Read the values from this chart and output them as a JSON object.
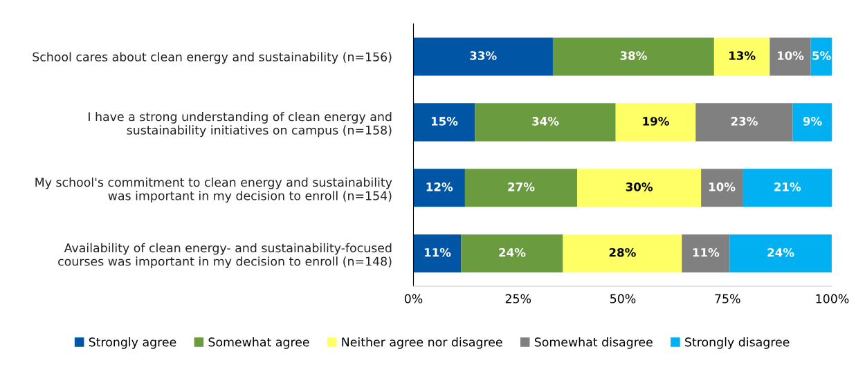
{
  "chart_data": {
    "type": "bar",
    "orientation": "horizontal",
    "stacked": true,
    "categories": [
      "School cares about clean energy and sustainability (n=156)",
      "I have a strong understanding of clean energy and\nsustainability initiatives on campus (n=158)",
      "My school's commitment to clean energy and sustainability\nwas important in my decision to enroll (n=154)",
      "Availability of clean energy- and sustainability-focused\ncourses was important in my decision to enroll (n=148)"
    ],
    "series": [
      {
        "name": "Strongly agree",
        "color": "#0055a5",
        "values": [
          33.3,
          14.7,
          12.3,
          11.4
        ],
        "value_labels": [
          "33%",
          "15%",
          "12%",
          "11%"
        ]
      },
      {
        "name": "Somewhat agree",
        "color": "#6a9c3f",
        "values": [
          38.5,
          33.6,
          26.8,
          24.3
        ],
        "value_labels": [
          "38%",
          "34%",
          "27%",
          "24%"
        ]
      },
      {
        "name": "Neither agree nor disagree",
        "color": "#ffff66",
        "values": [
          13.3,
          19.1,
          29.6,
          28.4
        ],
        "value_labels": [
          "13%",
          "19%",
          "30%",
          "28%"
        ]
      },
      {
        "name": "Somewhat disagree",
        "color": "#808080",
        "values": [
          9.8,
          23.2,
          9.9,
          11.4
        ],
        "value_labels": [
          "10%",
          "23%",
          "10%",
          "11%"
        ]
      },
      {
        "name": "Strongly disagree",
        "color": "#00b0f0",
        "values": [
          5.1,
          9.4,
          21.4,
          24.4
        ],
        "value_labels": [
          "5%",
          "9%",
          "21%",
          "24%"
        ]
      }
    ],
    "xlim": [
      0,
      100
    ],
    "xticks": [
      {
        "value": 0,
        "label": "0%"
      },
      {
        "value": 25,
        "label": "25%"
      },
      {
        "value": 50,
        "label": "50%"
      },
      {
        "value": 75,
        "label": "75%"
      },
      {
        "value": 100,
        "label": "100%"
      }
    ],
    "grid": false,
    "legend": "bottom"
  }
}
